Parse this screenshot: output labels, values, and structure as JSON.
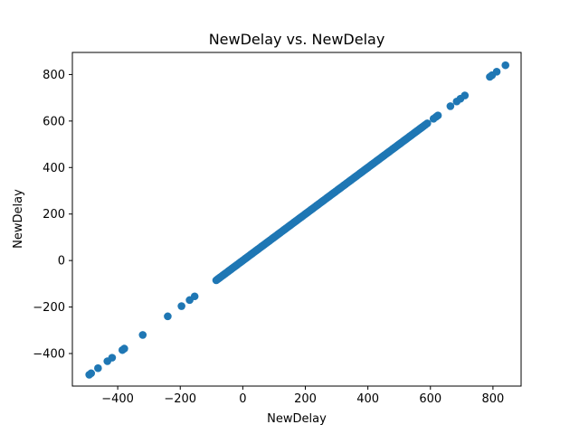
{
  "chart_data": {
    "type": "scatter",
    "title": "NewDelay vs. NewDelay",
    "xlabel": "NewDelay",
    "ylabel": "NewDelay",
    "xlim": [
      -545,
      890
    ],
    "ylim": [
      -540,
      895
    ],
    "xticks": [
      -400,
      -200,
      0,
      200,
      400,
      600,
      800
    ],
    "yticks": [
      -400,
      -200,
      0,
      200,
      400,
      600,
      800
    ],
    "xtick_labels": [
      "−400",
      "−200",
      "0",
      "200",
      "400",
      "600",
      "800"
    ],
    "ytick_labels": [
      "−400",
      "−200",
      "0",
      "200",
      "400",
      "600",
      "800"
    ],
    "grid": false,
    "marker_color": "#1f77b4",
    "series": [
      {
        "points": [
          {
            "x": -491,
            "y": -491
          },
          {
            "x": -485,
            "y": -485
          },
          {
            "x": -463,
            "y": -463
          },
          {
            "x": -433,
            "y": -433
          },
          {
            "x": -418,
            "y": -418
          },
          {
            "x": -385,
            "y": -385
          },
          {
            "x": -379,
            "y": -379
          },
          {
            "x": -320,
            "y": -320
          },
          {
            "x": -240,
            "y": -240
          },
          {
            "x": -196,
            "y": -196
          },
          {
            "x": -170,
            "y": -170
          },
          {
            "x": -154,
            "y": -154
          },
          {
            "x": 590,
            "y": 590
          },
          {
            "x": 610,
            "y": 610
          },
          {
            "x": 618,
            "y": 618
          },
          {
            "x": 624,
            "y": 624
          },
          {
            "x": 664,
            "y": 664
          },
          {
            "x": 684,
            "y": 684
          },
          {
            "x": 696,
            "y": 696
          },
          {
            "x": 710,
            "y": 710
          },
          {
            "x": 790,
            "y": 790
          },
          {
            "x": 797,
            "y": 797
          },
          {
            "x": 812,
            "y": 812
          },
          {
            "x": 840,
            "y": 840
          }
        ],
        "dense_range": {
          "from": -85,
          "to": 585,
          "step": 3
        }
      }
    ]
  }
}
